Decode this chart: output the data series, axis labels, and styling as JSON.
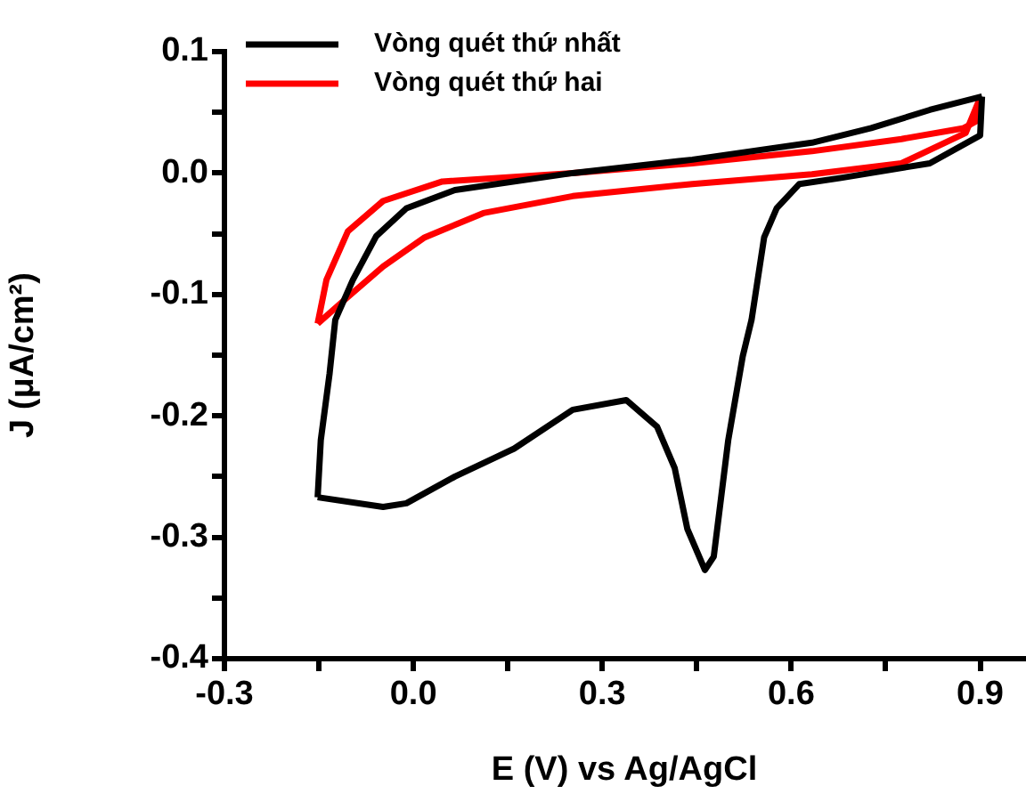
{
  "chart_data": {
    "type": "line",
    "xlabel": "E (V) vs Ag/AgCl",
    "ylabel": "J (μA/cm²)",
    "xlim": [
      -0.3,
      0.97
    ],
    "ylim": [
      -0.4,
      0.1
    ],
    "xticks": [
      -0.3,
      {
        "value": -0.15,
        "label": null
      },
      {
        "value": 0,
        "label": "0.0"
      },
      {
        "value": 0.15,
        "label": null
      },
      0.3,
      {
        "value": 0.45,
        "label": null
      },
      0.6,
      {
        "value": 0.75,
        "label": null
      },
      0.9
    ],
    "yticks": [
      0.1,
      {
        "value": 0.05,
        "label": null
      },
      {
        "value": 0,
        "label": "0.0"
      },
      {
        "value": -0.05,
        "label": null
      },
      -0.1,
      {
        "value": -0.15,
        "label": null
      },
      -0.2,
      {
        "value": -0.25,
        "label": null
      },
      -0.3,
      {
        "value": -0.35,
        "label": null
      },
      -0.4
    ],
    "grid": false,
    "legend": "top left",
    "marker": "none",
    "line_style": "solid",
    "series": [
      {
        "name": "Vòng quét thứ nhất",
        "color": "#000000",
        "x": [
          0.903,
          0.9,
          0.82,
          0.679,
          0.613,
          0.577,
          0.557,
          0.537,
          0.523,
          0.5,
          0.477,
          0.463,
          0.435,
          0.415,
          0.387,
          0.338,
          0.253,
          0.16,
          0.066,
          -0.011,
          -0.048,
          -0.152
        ],
        "values": [
          0.063,
          0.031,
          0.008,
          -0.004,
          -0.009,
          -0.029,
          -0.053,
          -0.121,
          -0.151,
          -0.22,
          -0.316,
          -0.327,
          -0.293,
          -0.243,
          -0.209,
          -0.187,
          -0.195,
          -0.227,
          -0.25,
          -0.272,
          -0.275,
          -0.267
        ]
      },
      {
        "color": "#000000",
        "x": [
          -0.152,
          -0.147,
          -0.133,
          -0.124,
          -0.096,
          -0.059,
          -0.011,
          0.066,
          0.253,
          0.443,
          0.633,
          0.727,
          0.82,
          0.903
        ],
        "values": [
          -0.267,
          -0.22,
          -0.165,
          -0.121,
          -0.088,
          -0.052,
          -0.029,
          -0.014,
          0,
          0.011,
          0.025,
          0.037,
          0.052,
          0.063
        ]
      },
      {
        "name": "Vòng quét thứ hai",
        "color": "#ff0000",
        "x": [
          0.9,
          0.877,
          0.775,
          0.633,
          0.443,
          0.253,
          0.111,
          0.018,
          -0.048,
          -0.104,
          -0.152
        ],
        "values": [
          0.062,
          0.033,
          0.008,
          -0.001,
          -0.009,
          -0.019,
          -0.033,
          -0.053,
          -0.077,
          -0.102,
          -0.124
        ]
      },
      {
        "color": "#ff0000",
        "x": [
          -0.152,
          -0.138,
          -0.104,
          -0.048,
          0.046,
          0.253,
          0.443,
          0.633,
          0.775,
          0.874,
          0.895,
          0.9
        ],
        "values": [
          -0.124,
          -0.088,
          -0.048,
          -0.023,
          -0.007,
          0,
          0.008,
          0.018,
          0.028,
          0.037,
          0.043,
          0.062
        ]
      }
    ]
  }
}
